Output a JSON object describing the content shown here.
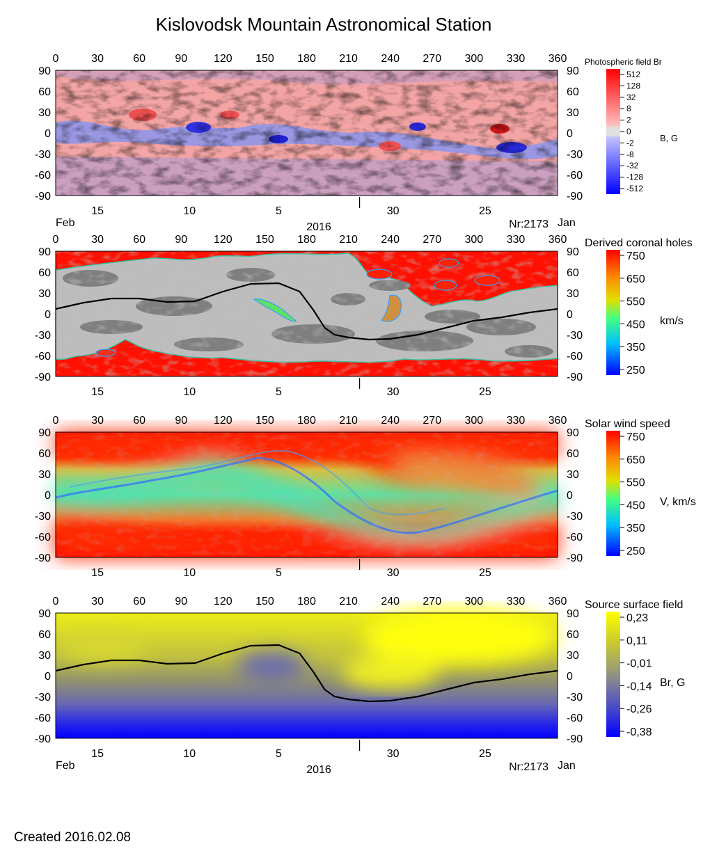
{
  "page": {
    "title": "Kislovodsk Mountain Astronomical Station",
    "created": "Created  2016.02.08"
  },
  "colors": {
    "br_positive": "#ff0000",
    "br_negative": "#0000ff",
    "hole_light_gray": "#c0c0c0",
    "hole_dark_gray": "#808080",
    "speed_slow": "#0000ff",
    "speed_fast": "#ff0000",
    "ss_positive": "#ffff00",
    "ss_negative": "#0000ff",
    "neutral_line": "#000000"
  },
  "axes": {
    "longitude_ticks": [
      "0",
      "30",
      "60",
      "90",
      "120",
      "150",
      "180",
      "210",
      "240",
      "270",
      "300",
      "330",
      "360"
    ],
    "latitude_ticks": [
      "90",
      "60",
      "30",
      "0",
      "-30",
      "-60",
      "-90"
    ],
    "longitude_range": [
      0,
      360
    ],
    "latitude_range": [
      -90,
      90
    ],
    "date_labels": [
      {
        "text": "15",
        "lon": 30
      },
      {
        "text": "10",
        "lon": 96
      },
      {
        "text": "5",
        "lon": 160
      },
      {
        "text": "30",
        "lon": 242
      },
      {
        "text": "25",
        "lon": 308
      }
    ],
    "month_separator_lon": 218,
    "month_left": "Feb",
    "month_right": "Jan",
    "year": "2016",
    "rotation": "Nr:2173"
  },
  "chart_data": [
    {
      "type": "heatmap",
      "name": "photospheric_field",
      "title": "Photospheric field Br",
      "unit_label": "B, G",
      "colorbar_ticks": [
        "512",
        "128",
        "32",
        "8",
        "2",
        "0",
        "-2",
        "-8",
        "-32",
        "-128",
        "-512"
      ],
      "x_range": [
        0,
        360
      ],
      "y_range": [
        -90,
        90
      ]
    },
    {
      "type": "heatmap",
      "name": "derived_coronal_holes",
      "title": "Derived coronal holes",
      "unit_label": "km/s",
      "colorbar_ticks": [
        "750",
        "650",
        "550",
        "450",
        "350",
        "250"
      ],
      "x_range": [
        0,
        360
      ],
      "y_range": [
        -90,
        90
      ],
      "neutral_line": {
        "lon": [
          0,
          20,
          40,
          60,
          80,
          100,
          120,
          140,
          160,
          175,
          185,
          193,
          200,
          210,
          225,
          240,
          260,
          280,
          300,
          320,
          340,
          360
        ],
        "lat": [
          7,
          16,
          22,
          22,
          17,
          18,
          32,
          43,
          44,
          32,
          5,
          -20,
          -30,
          -34,
          -37,
          -36,
          -30,
          -20,
          -10,
          -5,
          2,
          7
        ]
      }
    },
    {
      "type": "heatmap",
      "name": "solar_wind_speed",
      "title": "Solar wind speed",
      "unit_label": "V, km/s",
      "colorbar_ticks": [
        "750",
        "650",
        "550",
        "450",
        "350",
        "250"
      ],
      "x_range": [
        0,
        360
      ],
      "y_range": [
        -90,
        90
      ]
    },
    {
      "type": "heatmap",
      "name": "source_surface_field",
      "title": "Source surface field",
      "unit_label": "Br, G",
      "colorbar_ticks": [
        "0,23",
        "0,11",
        "-0,01",
        "-0,14",
        "-0,26",
        "-0,38"
      ],
      "x_range": [
        0,
        360
      ],
      "y_range": [
        -90,
        90
      ],
      "neutral_line": {
        "lon": [
          0,
          20,
          40,
          60,
          80,
          100,
          120,
          140,
          160,
          175,
          185,
          193,
          200,
          210,
          225,
          240,
          260,
          280,
          300,
          320,
          340,
          360
        ],
        "lat": [
          7,
          16,
          22,
          22,
          17,
          18,
          32,
          43,
          44,
          32,
          5,
          -20,
          -30,
          -34,
          -37,
          -36,
          -30,
          -20,
          -10,
          -5,
          2,
          7
        ]
      }
    }
  ]
}
